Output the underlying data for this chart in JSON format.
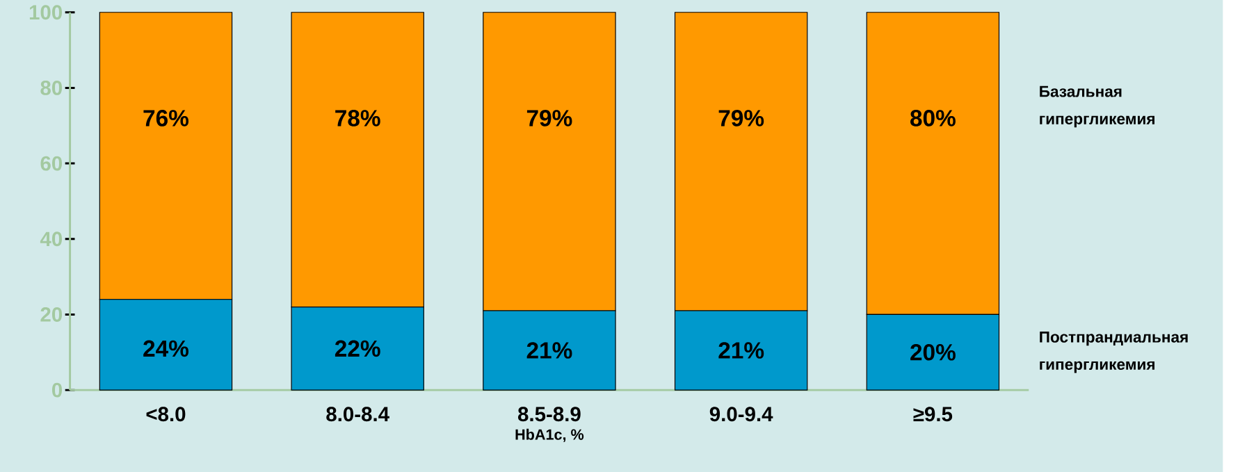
{
  "chart_data": {
    "type": "bar",
    "stacked": true,
    "xlabel": "HbA1c, %",
    "categories": [
      "<8.0",
      "8.0-8.4",
      "8.5-8.9",
      "9.0-9.4",
      "≥9.5"
    ],
    "series": [
      {
        "name": "Постпрандиальная гипергликемия",
        "color": "#0099cc",
        "values": [
          24,
          22,
          21,
          21,
          20
        ],
        "value_labels": [
          "24%",
          "22%",
          "21%",
          "21%",
          "20%"
        ]
      },
      {
        "name": "Базальная гипергликемия",
        "color": "#ff9900",
        "values": [
          76,
          78,
          79,
          79,
          80
        ],
        "value_labels": [
          "76%",
          "78%",
          "79%",
          "79%",
          "80%"
        ]
      }
    ],
    "ylim": [
      0,
      100
    ],
    "yticks": [
      0,
      20,
      40,
      60,
      80,
      100
    ],
    "grid": false
  }
}
